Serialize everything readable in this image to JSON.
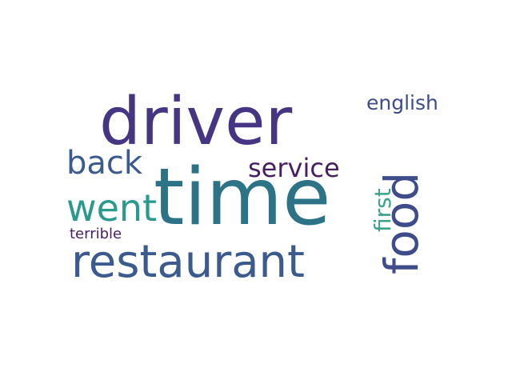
{
  "word_cloud": {
    "words": [
      {
        "text": "time",
        "color": "#2c7387"
      },
      {
        "text": "driver",
        "color": "#453582"
      },
      {
        "text": "restaurant",
        "color": "#3b5a8e"
      },
      {
        "text": "food",
        "color": "#3e4c8a"
      },
      {
        "text": "back",
        "color": "#3b5a8e"
      },
      {
        "text": "service",
        "color": "#481e63"
      },
      {
        "text": "went",
        "color": "#2a9a8c"
      },
      {
        "text": "first",
        "color": "#3aa38a"
      },
      {
        "text": "english",
        "color": "#3e4c8a"
      },
      {
        "text": "terrible",
        "color": "#481e63"
      }
    ]
  }
}
